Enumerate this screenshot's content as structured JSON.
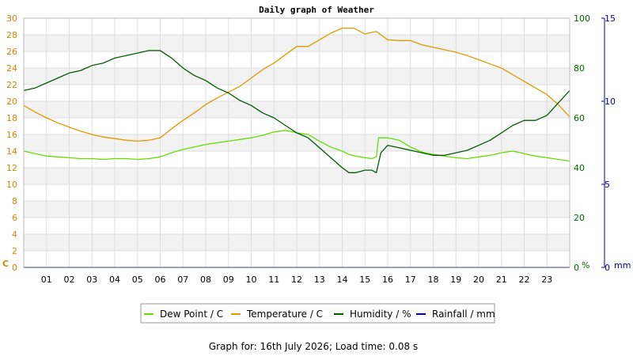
{
  "chart_data": {
    "type": "line",
    "title": "Daily graph of Weather",
    "x_tick_labels": [
      "01",
      "02",
      "03",
      "04",
      "05",
      "06",
      "07",
      "08",
      "09",
      "10",
      "11",
      "12",
      "13",
      "14",
      "15",
      "16",
      "17",
      "18",
      "19",
      "20",
      "21",
      "22",
      "23"
    ],
    "axes": {
      "temperature": {
        "unit_label": "C",
        "range": [
          0,
          30
        ],
        "ticks": [
          0,
          2,
          4,
          6,
          8,
          10,
          12,
          14,
          16,
          18,
          20,
          22,
          24,
          26,
          28,
          30
        ],
        "color": "#cc8800"
      },
      "humidity": {
        "unit_label": "%",
        "range": [
          0,
          100
        ],
        "ticks": [
          0,
          20,
          40,
          60,
          80,
          100
        ],
        "color": "#006600"
      },
      "rainfall": {
        "unit_label": "mm",
        "range": [
          0,
          15
        ],
        "ticks": [
          0,
          5,
          10,
          15
        ],
        "color": "#000099"
      }
    },
    "grid": true,
    "legend_position": "bottom",
    "series": [
      {
        "name": "Dew Point / C",
        "axis": "temperature",
        "color": "#66dd00",
        "x": [
          0,
          0.5,
          1,
          1.5,
          2,
          2.5,
          3,
          3.5,
          4,
          4.5,
          5,
          5.5,
          6,
          6.5,
          7,
          7.5,
          8,
          8.5,
          9,
          9.5,
          10,
          10.5,
          11,
          11.5,
          12,
          12.5,
          13,
          13.5,
          14,
          14.3,
          14.6,
          15,
          15.3,
          15.5,
          15.6,
          16,
          16.5,
          17,
          17.5,
          18,
          18.5,
          19,
          19.5,
          20,
          20.5,
          21,
          21.5,
          22,
          22.5,
          23,
          23.5,
          24
        ],
        "values": [
          14.0,
          13.7,
          13.4,
          13.3,
          13.2,
          13.1,
          13.1,
          13.0,
          13.1,
          13.1,
          13.0,
          13.1,
          13.3,
          13.8,
          14.2,
          14.5,
          14.8,
          15.0,
          15.2,
          15.4,
          15.6,
          15.9,
          16.3,
          16.5,
          16.2,
          16.0,
          15.2,
          14.5,
          14.0,
          13.6,
          13.4,
          13.2,
          13.1,
          13.3,
          15.6,
          15.6,
          15.3,
          14.5,
          13.9,
          13.6,
          13.4,
          13.2,
          13.1,
          13.3,
          13.5,
          13.8,
          14.0,
          13.7,
          13.4,
          13.2,
          13.0,
          12.8
        ]
      },
      {
        "name": "Temperature / C",
        "axis": "temperature",
        "color": "#e09900",
        "x": [
          0,
          0.5,
          1,
          1.5,
          2,
          2.5,
          3,
          3.5,
          4,
          4.5,
          5,
          5.5,
          6,
          6.5,
          7,
          7.5,
          8,
          8.5,
          9,
          9.5,
          10,
          10.5,
          11,
          11.5,
          12,
          12.5,
          13,
          13.5,
          14,
          14.5,
          15,
          15.5,
          16,
          16.5,
          17,
          17.5,
          18,
          18.5,
          19,
          19.5,
          20,
          20.5,
          21,
          21.5,
          22,
          22.5,
          23,
          23.5,
          24
        ],
        "values": [
          19.5,
          18.7,
          18.0,
          17.4,
          16.9,
          16.4,
          16.0,
          15.7,
          15.5,
          15.3,
          15.2,
          15.3,
          15.6,
          16.7,
          17.7,
          18.6,
          19.6,
          20.4,
          21.1,
          21.8,
          22.8,
          23.8,
          24.6,
          25.6,
          26.6,
          26.6,
          27.4,
          28.2,
          28.8,
          28.8,
          28.1,
          28.4,
          27.4,
          27.3,
          27.3,
          26.8,
          26.5,
          26.2,
          25.9,
          25.5,
          25.0,
          24.5,
          24.0,
          23.2,
          22.4,
          21.6,
          20.8,
          19.6,
          18.1
        ]
      },
      {
        "name": "Humidity / %",
        "axis": "humidity",
        "color": "#005c00",
        "x": [
          0,
          0.5,
          1,
          1.5,
          2,
          2.5,
          3,
          3.5,
          4,
          4.5,
          5,
          5.5,
          6,
          6.5,
          7,
          7.5,
          8,
          8.5,
          9,
          9.5,
          10,
          10.5,
          11,
          11.5,
          12,
          12.5,
          13,
          13.5,
          14,
          14.3,
          14.6,
          15,
          15.3,
          15.5,
          15.7,
          16,
          16.5,
          17,
          17.5,
          18,
          18.5,
          19,
          19.5,
          20,
          20.5,
          21,
          21.5,
          22,
          22.5,
          23,
          23.5,
          24
        ],
        "values": [
          71,
          72,
          74,
          76,
          78,
          79,
          81,
          82,
          84,
          85,
          86,
          87,
          87,
          84,
          80,
          77,
          75,
          72,
          70,
          67,
          65,
          62,
          60,
          57,
          54,
          52,
          48,
          44,
          40,
          38,
          38,
          39,
          39,
          38,
          46,
          49,
          48,
          47,
          46,
          45,
          45,
          46,
          47,
          49,
          51,
          54,
          57,
          59,
          59,
          61,
          66,
          71
        ]
      },
      {
        "name": "Rainfall / mm",
        "axis": "rainfall",
        "color": "#000099",
        "x": [
          0,
          24
        ],
        "values": [
          0,
          0
        ]
      }
    ],
    "footer": "Graph for: 16th July 2026; Load time: 0.08 s"
  }
}
